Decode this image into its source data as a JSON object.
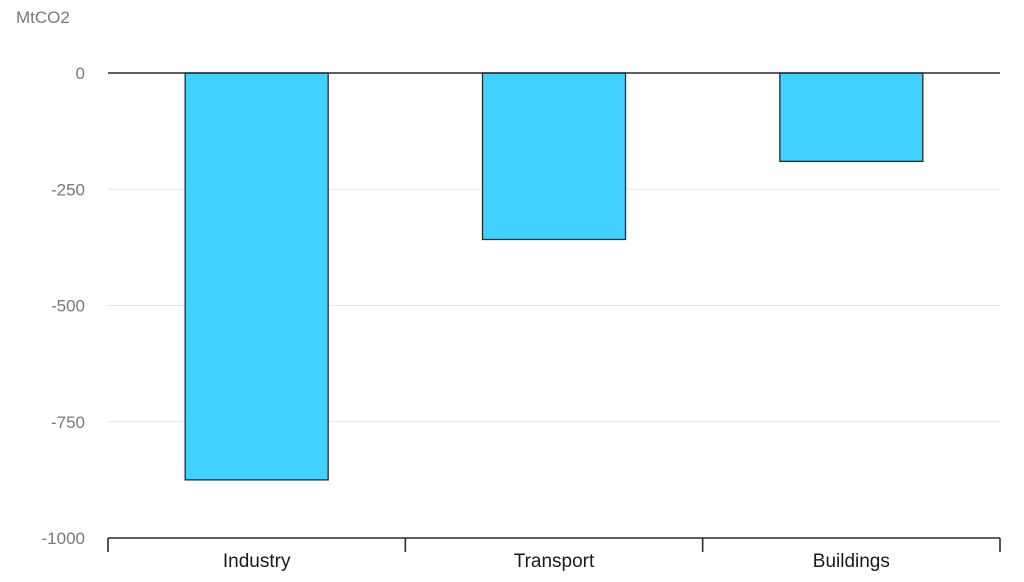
{
  "chart_data": {
    "type": "bar",
    "ylabel": "MtCO2",
    "categories": [
      "Industry",
      "Transport",
      "Buildings"
    ],
    "values": [
      -875,
      -358,
      -190
    ],
    "ylim": [
      -1000,
      0
    ],
    "yticks": [
      0,
      -250,
      -500,
      -750,
      -1000
    ],
    "ytick_labels": [
      "0",
      "-250",
      "-500",
      "-750",
      "-1000"
    ],
    "grid": true,
    "colors": {
      "bar": "#40d1ff",
      "bar_edge": "#2a2a2a",
      "grid": "#e6e6e6",
      "axis": "#2a2a2a"
    }
  }
}
